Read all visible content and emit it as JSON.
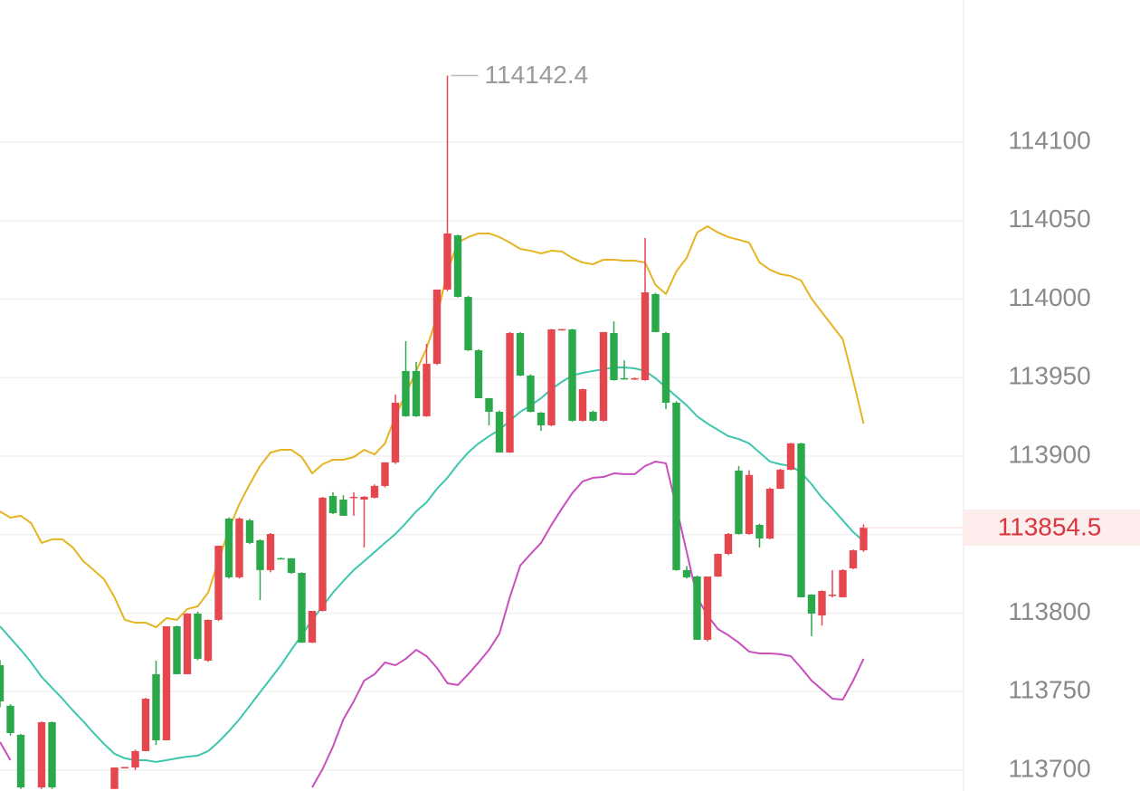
{
  "chart_data": {
    "type": "candlestick",
    "open": [
      113766.8,
      113741,
      113722.5,
      null,
      113689,
      113730.5,
      null,
      null,
      null,
      null,
      null,
      113688,
      113701.5,
      113701.7,
      113712.1,
      113761.1,
      113719,
      113791.6,
      113761.1,
      113799.7,
      113769.7,
      113795.7,
      113860.2,
      113822.8,
      113859.1,
      113846.4,
      113827.4,
      113835,
      113834.9,
      113825.6,
      113781.2,
      113801.4,
      113874.6,
      113872.3,
      113874,
      113872.3,
      113873.5,
      113881,
      113896,
      113954.2,
      113954.2,
      113925.4,
      113958.8,
      114006.1,
      114040.6,
      114001.4,
      113967.4,
      113936.9,
      113928.2,
      113902.3,
      113978.4,
      113951.3,
      113927.7,
      113919.6,
      113980.7,
      113980.7,
      113922.5,
      113928.2,
      113922.5,
      113978.4,
      113949.6,
      113949,
      113948.4,
      114003.2,
      113978.4,
      113934,
      113827.4,
      113823.3,
      113783,
      113823.3,
      113837.7,
      113890.8,
      113850.4,
      113856.2,
      113847.5,
      113879.2,
      113891.3,
      113908.1,
      113811.8,
      113798.5,
      113811,
      113810.1,
      113828.5,
      113840
    ],
    "high": [
      113770,
      113742,
      113723,
      null,
      113731,
      113731,
      null,
      null,
      null,
      null,
      null,
      113701.7,
      113702,
      113713,
      113746,
      113769.7,
      113791.6,
      113792,
      113800,
      113801,
      113796,
      113843,
      113861,
      113861,
      113860,
      113847,
      113851,
      113835.5,
      113835,
      113826,
      113801.4,
      113874,
      113877,
      113875,
      113877,
      113874.5,
      113882,
      113896,
      113939.2,
      113973.2,
      113960,
      113971.5,
      114006.1,
      114142.4,
      114041,
      114002,
      113968,
      113937,
      113929,
      113979,
      113979,
      113952,
      113928,
      113981,
      113981,
      113981,
      113943,
      113929,
      113979,
      113985.9,
      113961,
      113950,
      114039,
      114004,
      113979,
      113935,
      113830,
      113824,
      113823.3,
      113838,
      113851,
      113893.7,
      113891,
      113857,
      113880,
      113892,
      113908.5,
      113908.5,
      113812,
      113814.5,
      113827.4,
      113828,
      113840.5,
      113856.5
    ],
    "low": [
      113740,
      113722,
      113688,
      null,
      113688,
      113688,
      null,
      null,
      null,
      null,
      null,
      113688,
      113701,
      113700,
      113712,
      113716,
      113719,
      113761,
      113761,
      113770,
      113769,
      113795,
      113822,
      113822,
      113844,
      113808.3,
      113826,
      113834.5,
      113825,
      113781,
      113781,
      113801,
      113863,
      113862,
      113862,
      113841.8,
      113873,
      113880,
      113895,
      113925,
      113925,
      113925,
      113958,
      114005,
      114001,
      113967,
      113936.9,
      113919.6,
      113902.3,
      113902,
      113951,
      113928,
      113916,
      113919,
      113980,
      113922,
      113922,
      113922,
      113922,
      113948,
      113949,
      113948.5,
      113948,
      113979,
      113930,
      113827,
      113822,
      113783,
      113782,
      113823,
      113837,
      113850,
      113850,
      113841.8,
      113847,
      113879,
      113891,
      113810,
      113785.3,
      113792,
      113810,
      113810,
      113828,
      113839
    ],
    "close": [
      113743.8,
      113723.6,
      113689,
      null,
      113730.5,
      113689,
      null,
      null,
      null,
      null,
      null,
      113701.7,
      113702,
      113712.1,
      113745.5,
      113719,
      113791.6,
      113761.1,
      113799.7,
      113770.9,
      113795.7,
      113842.9,
      113822.8,
      113860.2,
      113844.7,
      113827.4,
      113850.4,
      113834.9,
      113825.6,
      113781.2,
      113801.4,
      113873.5,
      113863.7,
      113862,
      113874.1,
      113874.1,
      113881,
      113896,
      113934,
      113925.4,
      113925.4,
      113958.8,
      114006.1,
      114041.8,
      114001.4,
      113967.4,
      113936.9,
      113928.2,
      113902.3,
      113978.4,
      113951.3,
      113928.2,
      113919.6,
      113980.7,
      113980.9,
      113922.5,
      113942.6,
      113922.5,
      113979,
      113948.4,
      113949,
      113949.6,
      114004.3,
      113979,
      113934,
      113827.4,
      113822.8,
      113783,
      113823.3,
      113837.7,
      113850.4,
      113850.4,
      113888,
      113847.5,
      113879.2,
      113891.3,
      113908.1,
      113810.1,
      113799.7,
      113814.1,
      113811.8,
      113827.4,
      113840,
      113854.5
    ],
    "up_color": "#e5474f",
    "down_color": "#2aa84a",
    "lines": [
      {
        "color": "#e6b422",
        "values": [
          113864.8,
          113860.8,
          113862.0,
          113857.3,
          113844.7,
          113847.0,
          113847.0,
          113841.8,
          113833.1,
          113827.4,
          113821.6,
          113810.1,
          113795.7,
          113793.9,
          113793.9,
          113791.0,
          113796.8,
          113795.7,
          113802.6,
          113804.3,
          113813.0,
          113833.1,
          113853.3,
          113869.4,
          113882.1,
          113893.7,
          113902.3,
          113904.0,
          113904.0,
          113899.4,
          113889.0,
          113894.8,
          113897.7,
          113897.7,
          113899.4,
          113904.0,
          113901.1,
          113908.1,
          113925.4,
          113939.8,
          113954.2,
          113968.6,
          113988.8,
          114017.6,
          114036.0,
          114039.5,
          114041.8,
          114041.8,
          114039.5,
          114036.0,
          114032.0,
          114030.8,
          114029.1,
          114030.8,
          114030.3,
          114026.2,
          114023.3,
          114022.2,
          114025.1,
          114025.1,
          114024.5,
          114024.5,
          114023.3,
          114009.0,
          114003.2,
          114017.6,
          114026.2,
          114042.4,
          114046.4,
          114042.4,
          114039.5,
          114037.8,
          114036.0,
          114023.3,
          114018.7,
          114015.9,
          114014.7,
          114011.8,
          114000.3,
          113991.6,
          113983.0,
          113974.4,
          113948.4,
          113920.7
        ]
      },
      {
        "color": "#3cc6ae",
        "values": [
          113791.6,
          113784.1,
          113776.6,
          113768.6,
          113759.4,
          113752.4,
          113745.5,
          113738.0,
          113731.1,
          113723.6,
          113716.7,
          113710.4,
          113707.5,
          113706.3,
          113706.3,
          113705.2,
          113706.3,
          113707.5,
          113708.6,
          113709.2,
          113712.1,
          113717.9,
          113724.8,
          113732.3,
          113741.0,
          113749.6,
          113758.2,
          113766.8,
          113776.6,
          113785.9,
          113795.7,
          113804.3,
          113813.0,
          113820.5,
          113827.4,
          113833.1,
          113838.9,
          113844.7,
          113850.4,
          113857.3,
          113864.8,
          113870.6,
          113879.2,
          113886.2,
          113894.8,
          113902.3,
          113908.1,
          113912.7,
          113916.7,
          113922.5,
          113928.2,
          113932.3,
          113936.9,
          113942.6,
          113947.3,
          113951.3,
          113953.0,
          113954.2,
          113955.3,
          113956.5,
          113956.5,
          113955.9,
          113954.2,
          113949.6,
          113943.8,
          113938.0,
          113932.3,
          113925.4,
          113920.7,
          113916.7,
          113912.7,
          113910.9,
          113908.1,
          113902.3,
          113896.5,
          113894.8,
          113893.7,
          113889.6,
          113882.1,
          113873.5,
          113866.6,
          113859.1,
          113851.6,
          113845.8
        ]
      },
      {
        "color": "#c94fbf",
        "values": [
          113717.9,
          113706.3,
          null,
          null,
          null,
          null,
          null,
          null,
          null,
          null,
          null,
          null,
          null,
          null,
          null,
          null,
          null,
          null,
          null,
          null,
          null,
          null,
          null,
          null,
          null,
          null,
          null,
          null,
          null,
          null,
          113689.0,
          113700.6,
          113715.0,
          113732.3,
          113743.8,
          113757.0,
          113761.1,
          113768.6,
          113766.8,
          113770.9,
          113776.6,
          113772.6,
          113765.1,
          113755.3,
          113754.2,
          113761.1,
          113768.6,
          113776.6,
          113787.0,
          113810.1,
          113830.3,
          113837.7,
          113844.7,
          113856.2,
          113866.6,
          113876.4,
          113883.9,
          113886.2,
          113886.7,
          113889.0,
          113888.5,
          113888.5,
          113893.7,
          113896.5,
          113895.4,
          113867.7,
          113838.9,
          113810.1,
          113798.5,
          113789.9,
          113785.9,
          113781.2,
          113775.5,
          113774.3,
          113774.3,
          113773.8,
          113772.6,
          113765.1,
          113757.0,
          113751.3,
          113745.5,
          113744.9,
          113757.0,
          113770.9
        ]
      }
    ],
    "ylim": [
      113686.7,
      114190.5
    ],
    "yticks": [
      113700,
      113750,
      113800,
      113850,
      113900,
      113950,
      114000,
      114050,
      114100
    ],
    "grid": true
  }
}
